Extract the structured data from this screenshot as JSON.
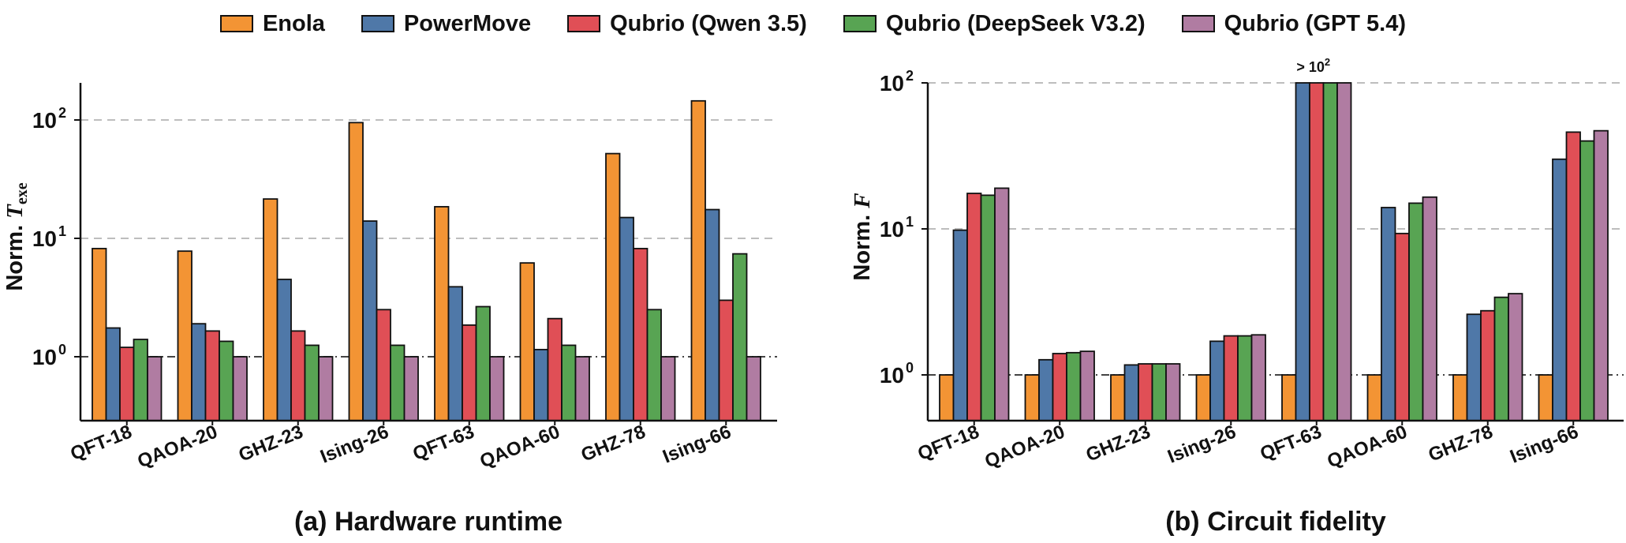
{
  "legend": {
    "items": [
      {
        "label": "Enola",
        "color": "#F39434"
      },
      {
        "label": "PowerMove",
        "color": "#4F78A8"
      },
      {
        "label": "Qubrio (Qwen 3.5)",
        "color": "#E04F56"
      },
      {
        "label": "Qubrio (DeepSeek V3.2)",
        "color": "#58A453"
      },
      {
        "label": "Qubrio (GPT 5.4)",
        "color": "#B07CA2"
      }
    ]
  },
  "chart_data": [
    {
      "type": "bar",
      "title": "(a) Hardware runtime",
      "ylabel_prefix": "Norm.",
      "ylabel_symbol": "T",
      "ylabel_subscript": "exe",
      "yscale": "log",
      "ylim": [
        0.3,
        300
      ],
      "yticks": [
        {
          "base": "10",
          "exp": "0"
        },
        {
          "base": "10",
          "exp": "1"
        },
        {
          "base": "10",
          "exp": "2"
        }
      ],
      "grid": "dashed at 10^1 and 10^2, dash-dot at 10^0",
      "categories": [
        "QFT-18",
        "QAOA-20",
        "GHZ-23",
        "Ising-26",
        "QFT-63",
        "QAOA-60",
        "GHZ-78",
        "Ising-66"
      ],
      "series": [
        {
          "name": "Enola",
          "values": [
            8.2,
            7.8,
            21.5,
            95,
            18.5,
            6.2,
            52,
            145
          ]
        },
        {
          "name": "PowerMove",
          "values": [
            1.75,
            1.9,
            4.5,
            14,
            3.9,
            1.15,
            15,
            17.5
          ]
        },
        {
          "name": "Qubrio (Qwen 3.5)",
          "values": [
            1.2,
            1.65,
            1.65,
            2.5,
            1.85,
            2.1,
            8.2,
            3.0
          ]
        },
        {
          "name": "Qubrio (DeepSeek V3.2)",
          "values": [
            1.4,
            1.35,
            1.25,
            1.25,
            2.65,
            1.25,
            2.5,
            7.4
          ]
        },
        {
          "name": "Qubrio (GPT 5.4)",
          "values": [
            1.0,
            1.0,
            1.0,
            1.0,
            1.0,
            1.0,
            1.0,
            1.0
          ]
        }
      ]
    },
    {
      "type": "bar",
      "title": "(b) Circuit fidelity",
      "ylabel_prefix": "Norm.",
      "ylabel_symbol": "F",
      "yscale": "log",
      "ylim": [
        0.5,
        100
      ],
      "yticks": [
        {
          "base": "10",
          "exp": "0"
        },
        {
          "base": "10",
          "exp": "1"
        },
        {
          "base": "10",
          "exp": "2"
        }
      ],
      "grid": "dashed at 10^1 and 10^2, dash-dot at 10^0",
      "annotation": {
        "text": "> 10",
        "exp": "2",
        "category": "QFT-63"
      },
      "categories": [
        "QFT-18",
        "QAOA-20",
        "GHZ-23",
        "Ising-26",
        "QFT-63",
        "QAOA-60",
        "GHZ-78",
        "Ising-66"
      ],
      "series": [
        {
          "name": "Enola",
          "values": [
            1.0,
            1.0,
            1.0,
            1.0,
            1.0,
            1.0,
            1.0,
            1.0
          ]
        },
        {
          "name": "PowerMove",
          "values": [
            9.8,
            1.27,
            1.17,
            1.7,
            100,
            14,
            2.6,
            30
          ]
        },
        {
          "name": "Qubrio (Qwen 3.5)",
          "values": [
            17.5,
            1.4,
            1.19,
            1.85,
            100,
            9.3,
            2.75,
            46
          ]
        },
        {
          "name": "Qubrio (DeepSeek V3.2)",
          "values": [
            17,
            1.42,
            1.19,
            1.85,
            100,
            15,
            3.4,
            40
          ]
        },
        {
          "name": "Qubrio (GPT 5.4)",
          "values": [
            19,
            1.45,
            1.19,
            1.88,
            100,
            16.5,
            3.6,
            47
          ]
        }
      ]
    }
  ]
}
